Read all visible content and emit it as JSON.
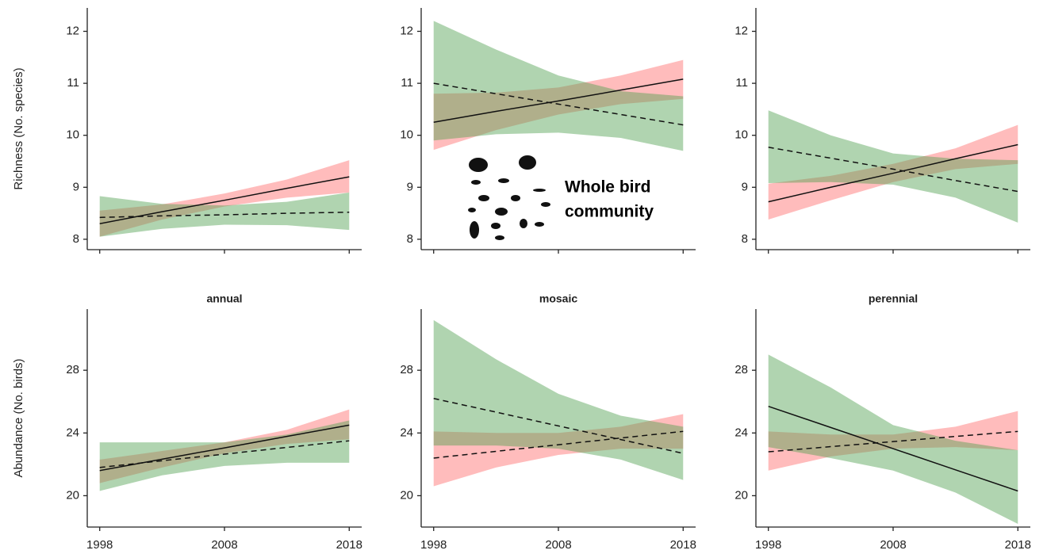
{
  "chart_data": [
    {
      "type": "line",
      "ylabel": "Richness (No. species)",
      "x": [
        1998,
        2003,
        2008,
        2013,
        2018
      ],
      "xlim": [
        1997,
        2019
      ],
      "xticks": [
        1998,
        2008,
        2018
      ],
      "ylim": [
        7.8,
        12.45
      ],
      "yticks": [
        8,
        9,
        10,
        11,
        12
      ],
      "series": [
        {
          "color": "#ff6b6b",
          "linestyle": "solid",
          "values": [
            8.3,
            8.53,
            8.75,
            8.98,
            9.2
          ],
          "lower": [
            8.05,
            8.38,
            8.63,
            8.8,
            8.9
          ],
          "upper": [
            8.55,
            8.67,
            8.88,
            9.15,
            9.52
          ]
        },
        {
          "color": "#4f9f4f",
          "linestyle": "dashed",
          "values": [
            8.42,
            8.45,
            8.47,
            8.5,
            8.52
          ],
          "lower": [
            8.05,
            8.2,
            8.28,
            8.27,
            8.18
          ],
          "upper": [
            8.83,
            8.68,
            8.65,
            8.72,
            8.9
          ]
        }
      ]
    },
    {
      "type": "line",
      "annotation": [
        "Whole bird",
        "community"
      ],
      "x": [
        1998,
        2003,
        2008,
        2013,
        2018
      ],
      "xlim": [
        1997,
        2019
      ],
      "xticks": [
        1998,
        2008,
        2018
      ],
      "ylim": [
        7.8,
        12.45
      ],
      "yticks": [
        8,
        9,
        10,
        11,
        12
      ],
      "series": [
        {
          "color": "#ff6b6b",
          "linestyle": "solid",
          "values": [
            10.25,
            10.46,
            10.66,
            10.87,
            11.08
          ],
          "lower": [
            9.72,
            10.1,
            10.4,
            10.6,
            10.7
          ],
          "upper": [
            10.8,
            10.82,
            10.92,
            11.15,
            11.45
          ]
        },
        {
          "color": "#4f9f4f",
          "linestyle": "dashed",
          "values": [
            11.0,
            10.8,
            10.6,
            10.4,
            10.2
          ],
          "lower": [
            9.9,
            10.02,
            10.05,
            9.95,
            9.7
          ],
          "upper": [
            12.2,
            11.65,
            11.15,
            10.85,
            10.75
          ]
        }
      ]
    },
    {
      "type": "line",
      "x": [
        1998,
        2003,
        2008,
        2013,
        2018
      ],
      "xlim": [
        1997,
        2019
      ],
      "xticks": [
        1998,
        2008,
        2018
      ],
      "ylim": [
        7.8,
        12.45
      ],
      "yticks": [
        8,
        9,
        10,
        11,
        12
      ],
      "series": [
        {
          "color": "#ff6b6b",
          "linestyle": "solid",
          "values": [
            8.72,
            9.0,
            9.27,
            9.55,
            9.82
          ],
          "lower": [
            8.38,
            8.75,
            9.1,
            9.35,
            9.45
          ],
          "upper": [
            9.07,
            9.22,
            9.45,
            9.75,
            10.2
          ]
        },
        {
          "color": "#4f9f4f",
          "linestyle": "dashed",
          "values": [
            9.77,
            9.56,
            9.35,
            9.13,
            8.92
          ],
          "lower": [
            9.08,
            9.1,
            9.05,
            8.8,
            8.32
          ],
          "upper": [
            10.48,
            10.0,
            9.65,
            9.55,
            9.52
          ]
        }
      ]
    },
    {
      "type": "line",
      "title": "annual",
      "ylabel": "Abundance (No. birds)",
      "x": [
        1998,
        2003,
        2008,
        2013,
        2018
      ],
      "xlim": [
        1997,
        2019
      ],
      "xticks": [
        1998,
        2008,
        2018
      ],
      "ylim": [
        18,
        31.9
      ],
      "yticks": [
        20,
        24,
        28
      ],
      "series": [
        {
          "color": "#ff6b6b",
          "linestyle": "solid",
          "values": [
            21.6,
            22.33,
            23.05,
            23.78,
            24.5
          ],
          "lower": [
            20.8,
            21.8,
            22.7,
            23.3,
            23.6
          ],
          "upper": [
            22.3,
            22.85,
            23.4,
            24.2,
            25.5
          ]
        },
        {
          "color": "#4f9f4f",
          "linestyle": "dashed",
          "values": [
            21.8,
            22.23,
            22.65,
            23.08,
            23.5
          ],
          "lower": [
            20.3,
            21.3,
            21.9,
            22.1,
            22.1
          ],
          "upper": [
            23.4,
            23.4,
            23.4,
            23.9,
            24.8
          ]
        }
      ]
    },
    {
      "type": "line",
      "title": "mosaic",
      "x": [
        1998,
        2003,
        2008,
        2013,
        2018
      ],
      "xlim": [
        1997,
        2019
      ],
      "xticks": [
        1998,
        2008,
        2018
      ],
      "ylim": [
        18,
        31.9
      ],
      "yticks": [
        20,
        24,
        28
      ],
      "series": [
        {
          "color": "#ff6b6b",
          "linestyle": "dashed",
          "values": [
            22.4,
            22.83,
            23.25,
            23.68,
            24.1
          ],
          "lower": [
            20.6,
            21.8,
            22.6,
            23.0,
            23.0
          ],
          "upper": [
            24.1,
            24.0,
            24.0,
            24.4,
            25.2
          ]
        },
        {
          "color": "#4f9f4f",
          "linestyle": "dashed",
          "values": [
            26.2,
            25.33,
            24.45,
            23.58,
            22.7
          ],
          "lower": [
            23.2,
            23.2,
            23.0,
            22.3,
            21.0
          ],
          "upper": [
            31.2,
            28.7,
            26.5,
            25.1,
            24.4
          ]
        }
      ]
    },
    {
      "type": "line",
      "title": "perennial",
      "x": [
        1998,
        2003,
        2008,
        2013,
        2018
      ],
      "xlim": [
        1997,
        2019
      ],
      "xticks": [
        1998,
        2008,
        2018
      ],
      "ylim": [
        18,
        31.9
      ],
      "yticks": [
        20,
        24,
        28
      ],
      "series": [
        {
          "color": "#ff6b6b",
          "linestyle": "dashed",
          "values": [
            22.8,
            23.13,
            23.45,
            23.78,
            24.1
          ],
          "lower": [
            21.6,
            22.5,
            23.0,
            23.1,
            22.9
          ],
          "upper": [
            24.1,
            23.9,
            23.9,
            24.4,
            25.4
          ]
        },
        {
          "color": "#4f9f4f",
          "linestyle": "solid",
          "values": [
            25.7,
            24.35,
            23.0,
            21.65,
            20.3
          ],
          "lower": [
            23.1,
            22.4,
            21.6,
            20.2,
            18.2
          ],
          "upper": [
            29.0,
            26.9,
            24.5,
            23.5,
            22.9
          ]
        }
      ]
    }
  ]
}
